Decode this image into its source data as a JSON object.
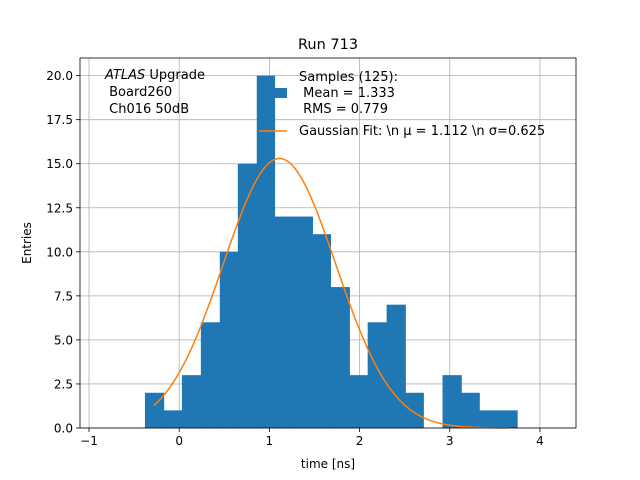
{
  "chart_data": {
    "type": "bar",
    "title": "Run 713",
    "xlabel": "time [ns]",
    "ylabel": "Entries",
    "xlim": [
      -1.1,
      4.4
    ],
    "ylim": [
      0,
      21
    ],
    "xticks": [
      -1,
      0,
      1,
      2,
      3,
      4
    ],
    "yticks": [
      0.0,
      2.5,
      5.0,
      7.5,
      10.0,
      12.5,
      15.0,
      17.5,
      20.0
    ],
    "grid": true,
    "annotation": {
      "italic": "ATLAS",
      "line1_rest": " Upgrade",
      "line2": " Board260",
      "line3": " Ch016 50dB"
    },
    "histogram": {
      "name": "Samples (125):",
      "legend_lines": [
        " Mean = 1.333",
        " RMS = 0.779"
      ],
      "color": "#1f77b4",
      "bins": [
        {
          "x0": -0.38,
          "x1": -0.17,
          "count": 2
        },
        {
          "x0": -0.17,
          "x1": 0.03,
          "count": 1
        },
        {
          "x0": 0.03,
          "x1": 0.24,
          "count": 3
        },
        {
          "x0": 0.24,
          "x1": 0.45,
          "count": 6
        },
        {
          "x0": 0.45,
          "x1": 0.65,
          "count": 10
        },
        {
          "x0": 0.65,
          "x1": 0.86,
          "count": 15
        },
        {
          "x0": 0.86,
          "x1": 1.06,
          "count": 20
        },
        {
          "x0": 1.06,
          "x1": 1.27,
          "count": 12
        },
        {
          "x0": 1.27,
          "x1": 1.48,
          "count": 12
        },
        {
          "x0": 1.48,
          "x1": 1.68,
          "count": 11
        },
        {
          "x0": 1.68,
          "x1": 1.89,
          "count": 8
        },
        {
          "x0": 1.89,
          "x1": 2.09,
          "count": 3
        },
        {
          "x0": 2.09,
          "x1": 2.3,
          "count": 6
        },
        {
          "x0": 2.3,
          "x1": 2.51,
          "count": 7
        },
        {
          "x0": 2.51,
          "x1": 2.71,
          "count": 2
        },
        {
          "x0": 2.71,
          "x1": 2.92,
          "count": 0
        },
        {
          "x0": 2.92,
          "x1": 3.13,
          "count": 3
        },
        {
          "x0": 3.13,
          "x1": 3.33,
          "count": 2
        },
        {
          "x0": 3.33,
          "x1": 3.54,
          "count": 1
        },
        {
          "x0": 3.54,
          "x1": 3.75,
          "count": 1
        }
      ]
    },
    "fit": {
      "name": "Gaussian Fit: \\n μ = 1.112 \\n σ=0.625",
      "color": "#ff7f0e",
      "mu": 1.112,
      "sigma": 0.625,
      "amplitude": 15.3,
      "x_range": [
        -0.28,
        3.65
      ]
    }
  }
}
